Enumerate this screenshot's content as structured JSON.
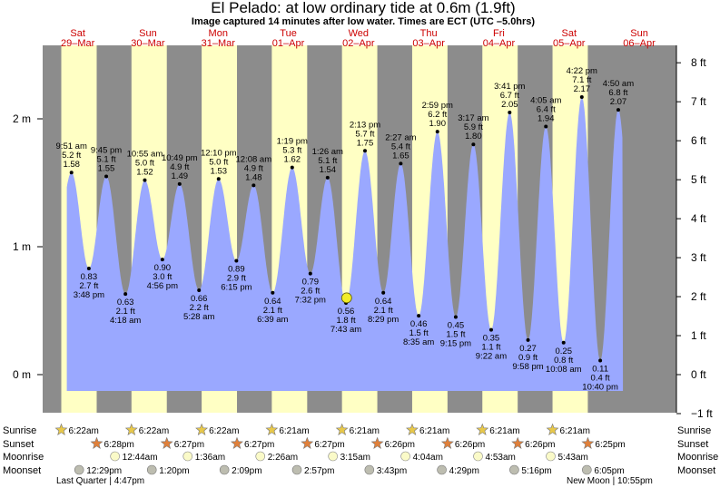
{
  "chart_data": {
    "type": "area",
    "title": "El Pelado: at low  ordinary tide at 0.6m (1.9ft)",
    "subtitle": "Image captured 14 minutes after low water. Times are ECT (UTC –5.0hrs)",
    "left_axis_ticks": [
      "0 m",
      "1 m",
      "2 m"
    ],
    "right_axis_ticks": [
      "−1 ft",
      "0 ft",
      "1 ft",
      "2 ft",
      "3 ft",
      "4 ft",
      "5 ft",
      "6 ft",
      "7 ft",
      "8 ft"
    ],
    "days": [
      {
        "dow": "Sat",
        "date": "29–Mar"
      },
      {
        "dow": "Sun",
        "date": "30–Mar"
      },
      {
        "dow": "Mon",
        "date": "31–Mar"
      },
      {
        "dow": "Tue",
        "date": "01–Apr"
      },
      {
        "dow": "Wed",
        "date": "02–Apr"
      },
      {
        "dow": "Thu",
        "date": "03–Apr"
      },
      {
        "dow": "Fri",
        "date": "04–Apr"
      },
      {
        "dow": "Sat",
        "date": "05–Apr"
      },
      {
        "dow": "Sun",
        "date": "06–Apr"
      }
    ],
    "current": {
      "height_m": 0.6,
      "label": "at low  ordinary tide at 0.6m (1.9ft)"
    },
    "tides": [
      {
        "type": "high",
        "time": "9:51 am",
        "ft": "5.2 ft",
        "m": 1.58,
        "ml": "1.58"
      },
      {
        "type": "low",
        "time": "3:48 pm",
        "ft": "2.7 ft",
        "m": 0.83,
        "ml": "0.83"
      },
      {
        "type": "high",
        "time": "9:45 pm",
        "ft": "5.1 ft",
        "m": 1.55,
        "ml": "1.55"
      },
      {
        "type": "low",
        "time": "4:18 am",
        "ft": "2.1 ft",
        "m": 0.63,
        "ml": "0.63"
      },
      {
        "type": "high",
        "time": "10:55 am",
        "ft": "5.0 ft",
        "m": 1.52,
        "ml": "1.52"
      },
      {
        "type": "low",
        "time": "4:56 pm",
        "ft": "3.0 ft",
        "m": 0.9,
        "ml": "0.90"
      },
      {
        "type": "high",
        "time": "10:49 pm",
        "ft": "4.9 ft",
        "m": 1.49,
        "ml": "1.49"
      },
      {
        "type": "low",
        "time": "5:28 am",
        "ft": "2.2 ft",
        "m": 0.66,
        "ml": "0.66"
      },
      {
        "type": "high",
        "time": "12:10 pm",
        "ft": "5.0 ft",
        "m": 1.53,
        "ml": "1.53"
      },
      {
        "type": "low",
        "time": "6:15 pm",
        "ft": "2.9 ft",
        "m": 0.89,
        "ml": "0.89"
      },
      {
        "type": "high",
        "time": "12:08 am",
        "ft": "4.9 ft",
        "m": 1.48,
        "ml": "1.48"
      },
      {
        "type": "low",
        "time": "6:39 am",
        "ft": "2.1 ft",
        "m": 0.64,
        "ml": "0.64"
      },
      {
        "type": "high",
        "time": "1:19 pm",
        "ft": "5.3 ft",
        "m": 1.62,
        "ml": "1.62"
      },
      {
        "type": "low",
        "time": "7:32 pm",
        "ft": "2.6 ft",
        "m": 0.79,
        "ml": "0.79"
      },
      {
        "type": "high",
        "time": "1:26 am",
        "ft": "5.1 ft",
        "m": 1.54,
        "ml": "1.54"
      },
      {
        "type": "low",
        "time": "7:43 am",
        "ft": "1.8 ft",
        "m": 0.56,
        "ml": "0.56"
      },
      {
        "type": "high",
        "time": "2:13 pm",
        "ft": "5.7 ft",
        "m": 1.75,
        "ml": "1.75"
      },
      {
        "type": "low",
        "time": "8:29 pm",
        "ft": "2.1 ft",
        "m": 0.64,
        "ml": "0.64"
      },
      {
        "type": "high",
        "time": "2:27 am",
        "ft": "5.4 ft",
        "m": 1.65,
        "ml": "1.65"
      },
      {
        "type": "low",
        "time": "8:35 am",
        "ft": "1.5 ft",
        "m": 0.46,
        "ml": "0.46"
      },
      {
        "type": "high",
        "time": "2:59 pm",
        "ft": "6.2 ft",
        "m": 1.9,
        "ml": "1.90"
      },
      {
        "type": "low",
        "time": "9:15 pm",
        "ft": "1.5 ft",
        "m": 0.45,
        "ml": "0.45"
      },
      {
        "type": "high",
        "time": "3:17 am",
        "ft": "5.9 ft",
        "m": 1.8,
        "ml": "1.80"
      },
      {
        "type": "low",
        "time": "9:22 am",
        "ft": "1.1 ft",
        "m": 0.35,
        "ml": "0.35"
      },
      {
        "type": "high",
        "time": "3:41 pm",
        "ft": "6.7 ft",
        "m": 2.05,
        "ml": "2.05"
      },
      {
        "type": "low",
        "time": "9:58 pm",
        "ft": "0.9 ft",
        "m": 0.27,
        "ml": "0.27"
      },
      {
        "type": "high",
        "time": "4:05 am",
        "ft": "6.4 ft",
        "m": 1.94,
        "ml": "1.94"
      },
      {
        "type": "low",
        "time": "10:08 am",
        "ft": "0.8 ft",
        "m": 0.25,
        "ml": "0.25"
      },
      {
        "type": "high",
        "time": "4:22 pm",
        "ft": "7.1 ft",
        "m": 2.17,
        "ml": "2.17"
      },
      {
        "type": "low",
        "time": "10:40 pm",
        "ft": "0.4 ft",
        "m": 0.11,
        "ml": "0.11"
      },
      {
        "type": "high",
        "time": "4:50 am",
        "ft": "6.8 ft",
        "m": 2.07,
        "ml": "2.07"
      }
    ],
    "row_labels": [
      "Sunrise",
      "Sunset",
      "Moonrise",
      "Moonset"
    ],
    "sunrise": [
      "6:22am",
      "6:22am",
      "6:22am",
      "6:21am",
      "6:21am",
      "6:21am",
      "6:21am",
      "6:21am"
    ],
    "sunset": [
      "6:28pm",
      "6:27pm",
      "6:27pm",
      "6:27pm",
      "6:26pm",
      "6:26pm",
      "6:26pm",
      "6:25pm"
    ],
    "moonrise": [
      "12:44am",
      "1:36am",
      "2:26am",
      "3:15am",
      "4:04am",
      "4:53am",
      "5:43am"
    ],
    "moonset": [
      "12:29pm",
      "1:20pm",
      "2:09pm",
      "2:57pm",
      "3:43pm",
      "4:29pm",
      "5:16pm",
      "6:05pm"
    ],
    "moon_phases": [
      "Last Quarter | 4:47pm",
      "New Moon | 10:55pm"
    ],
    "colors": {
      "night": "#8c8c8c",
      "day": "#ffffc4",
      "water": "#9aa8ff",
      "day_label": "#cc0000",
      "sun_icon": "#e8c84a",
      "sunset_icon": "#e0803a",
      "moonrise_icon": "#fafac8",
      "moonset_icon": "#bdbdb0"
    }
  }
}
